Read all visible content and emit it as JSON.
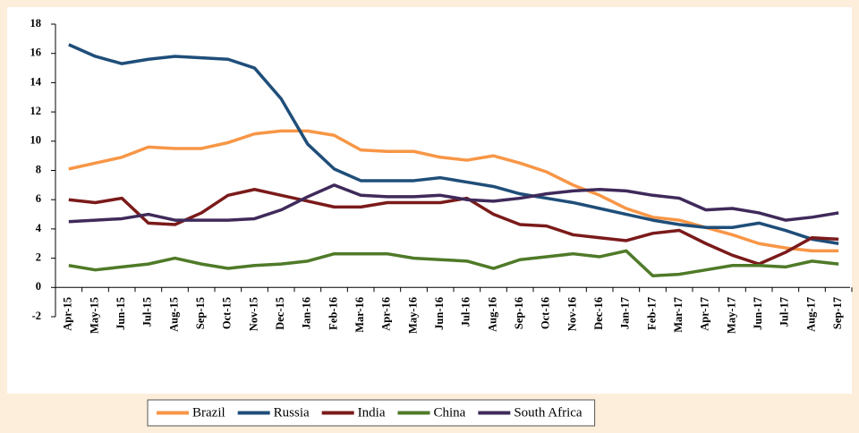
{
  "chart_data": {
    "type": "line",
    "categories": [
      "Apr-15",
      "May-15",
      "Jun-15",
      "Jul-15",
      "Aug-15",
      "Sep-15",
      "Oct-15",
      "Nov-15",
      "Dec-15",
      "Jan-16",
      "Feb-16",
      "Mar-16",
      "Apr-16",
      "May-16",
      "Jun-16",
      "Jul-16",
      "Aug-16",
      "Sep-16",
      "Oct-16",
      "Nov-16",
      "Dec-16",
      "Jan-17",
      "Feb-17",
      "Mar-17",
      "Apr-17",
      "May-17",
      "Jun-17",
      "Jul-17",
      "Aug-17",
      "Sep-17"
    ],
    "series": [
      {
        "name": "Brazil",
        "color": "#f79646",
        "values": [
          8.1,
          8.5,
          8.9,
          9.6,
          9.5,
          9.5,
          9.9,
          10.5,
          10.7,
          10.7,
          10.4,
          9.4,
          9.3,
          9.3,
          8.9,
          8.7,
          9.0,
          8.5,
          7.9,
          7.0,
          6.3,
          5.4,
          4.8,
          4.6,
          4.1,
          3.6,
          3.0,
          2.7,
          2.5,
          2.5
        ]
      },
      {
        "name": "Russia",
        "color": "#1f4e79",
        "values": [
          16.6,
          15.8,
          15.3,
          15.6,
          15.8,
          15.7,
          15.6,
          15.0,
          12.9,
          9.8,
          8.1,
          7.3,
          7.3,
          7.3,
          7.5,
          7.2,
          6.9,
          6.4,
          6.1,
          5.8,
          5.4,
          5.0,
          4.6,
          4.3,
          4.1,
          4.1,
          4.4,
          3.9,
          3.3,
          3.0
        ]
      },
      {
        "name": "India",
        "color": "#7b1a1a",
        "values": [
          6.0,
          5.8,
          6.1,
          4.4,
          4.3,
          5.1,
          6.3,
          6.7,
          6.3,
          5.9,
          5.5,
          5.5,
          5.8,
          5.8,
          5.8,
          6.1,
          5.0,
          4.3,
          4.2,
          3.6,
          3.4,
          3.2,
          3.7,
          3.9,
          3.0,
          2.2,
          1.6,
          2.4,
          3.4,
          3.3
        ]
      },
      {
        "name": "China",
        "color": "#4f7a28",
        "values": [
          1.5,
          1.2,
          1.4,
          1.6,
          2.0,
          1.6,
          1.3,
          1.5,
          1.6,
          1.8,
          2.3,
          2.3,
          2.3,
          2.0,
          1.9,
          1.8,
          1.3,
          1.9,
          2.1,
          2.3,
          2.1,
          2.5,
          0.8,
          0.9,
          1.2,
          1.5,
          1.5,
          1.4,
          1.8,
          1.6
        ]
      },
      {
        "name": "South Africa",
        "color": "#3f2a5a",
        "values": [
          4.5,
          4.6,
          4.7,
          5.0,
          4.6,
          4.6,
          4.6,
          4.7,
          5.3,
          6.2,
          7.0,
          6.3,
          6.2,
          6.2,
          6.3,
          6.0,
          5.9,
          6.1,
          6.4,
          6.6,
          6.7,
          6.6,
          6.3,
          6.1,
          5.3,
          5.4,
          5.1,
          4.6,
          4.8,
          5.1
        ]
      }
    ],
    "ylim": [
      -2,
      18
    ],
    "yticks": [
      -2,
      0,
      2,
      4,
      6,
      8,
      10,
      12,
      14,
      16,
      18
    ],
    "legend": "bottom"
  }
}
